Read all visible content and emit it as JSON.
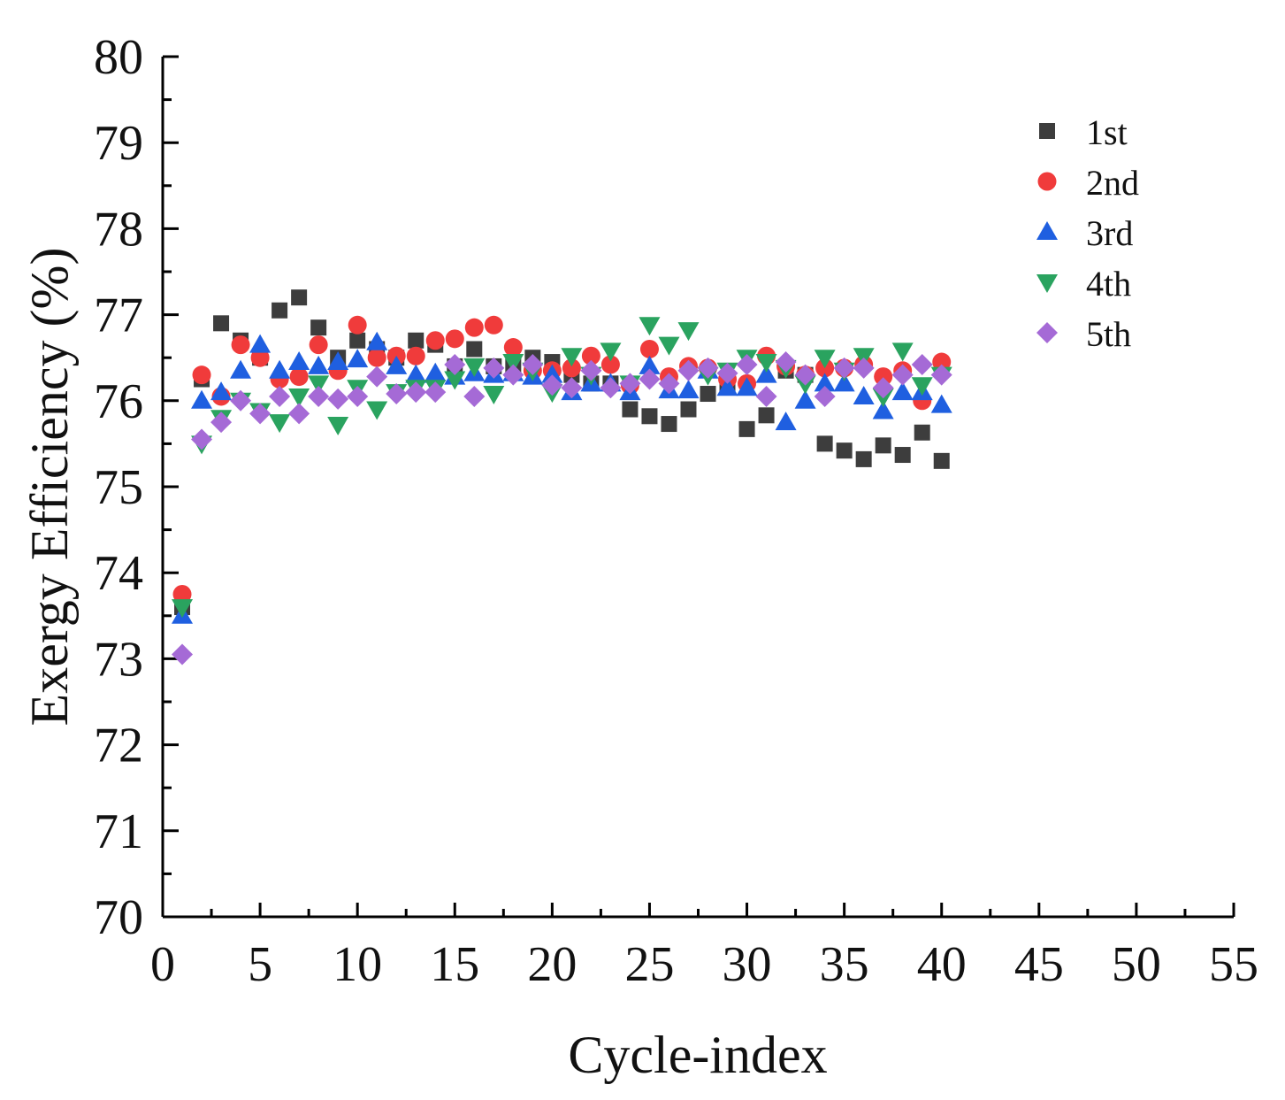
{
  "chart_data": {
    "type": "scatter",
    "title": "",
    "xlabel": "Cycle-index",
    "ylabel": "Exergy Efficiency (%)",
    "xlim": [
      0,
      55
    ],
    "ylim": [
      70,
      80
    ],
    "xticks": [
      0,
      5,
      10,
      15,
      20,
      25,
      30,
      35,
      40,
      45,
      50,
      55
    ],
    "yticks": [
      70,
      71,
      72,
      73,
      74,
      75,
      76,
      77,
      78,
      79,
      80
    ],
    "grid": false,
    "legend_position": "top-right",
    "x": [
      1,
      2,
      3,
      4,
      5,
      6,
      7,
      8,
      9,
      10,
      11,
      12,
      13,
      14,
      15,
      16,
      17,
      18,
      19,
      20,
      21,
      22,
      23,
      24,
      25,
      26,
      27,
      28,
      29,
      30,
      31,
      32,
      33,
      34,
      35,
      36,
      37,
      38,
      39,
      40
    ],
    "series": [
      {
        "name": "1st",
        "marker": "square",
        "color": "#3d3d3d",
        "values": [
          73.6,
          76.25,
          76.9,
          76.7,
          76.5,
          77.05,
          77.2,
          76.85,
          76.5,
          76.7,
          76.6,
          76.5,
          76.7,
          76.65,
          76.4,
          76.6,
          76.4,
          76.4,
          76.5,
          76.45,
          76.3,
          76.2,
          76.2,
          75.9,
          75.82,
          75.73,
          75.9,
          76.08,
          76.18,
          75.67,
          75.83,
          76.35,
          76.3,
          75.5,
          75.42,
          75.32,
          75.48,
          75.37,
          75.63,
          75.3
        ]
      },
      {
        "name": "2nd",
        "marker": "circle",
        "color": "#f03b3b",
        "values": [
          73.75,
          76.3,
          76.05,
          76.65,
          76.5,
          76.25,
          76.28,
          76.65,
          76.35,
          76.88,
          76.5,
          76.52,
          76.52,
          76.7,
          76.72,
          76.85,
          76.88,
          76.62,
          76.35,
          76.35,
          76.38,
          76.52,
          76.42,
          76.18,
          76.6,
          76.28,
          76.4,
          76.38,
          76.25,
          76.2,
          76.52,
          76.4,
          76.3,
          76.38,
          76.38,
          76.42,
          76.28,
          76.35,
          76.0,
          76.45
        ]
      },
      {
        "name": "3rd",
        "marker": "triangle-up",
        "color": "#1f5fe0",
        "values": [
          73.5,
          76.0,
          76.1,
          76.35,
          76.65,
          76.35,
          76.45,
          76.4,
          76.45,
          76.48,
          76.68,
          76.4,
          76.3,
          76.32,
          76.28,
          76.32,
          76.3,
          76.32,
          76.28,
          76.3,
          76.1,
          76.2,
          76.2,
          76.1,
          76.4,
          76.12,
          76.12,
          76.35,
          76.15,
          76.15,
          76.3,
          75.75,
          76.0,
          76.2,
          76.2,
          76.05,
          75.88,
          76.1,
          76.1,
          75.95
        ]
      },
      {
        "name": "4th",
        "marker": "triangle-down",
        "color": "#2aa35f",
        "values": [
          73.6,
          75.5,
          75.8,
          76.0,
          75.88,
          75.75,
          76.05,
          76.2,
          75.72,
          76.15,
          75.9,
          76.1,
          76.15,
          76.15,
          76.25,
          76.4,
          76.08,
          76.45,
          76.35,
          76.1,
          76.52,
          76.3,
          76.58,
          76.2,
          76.88,
          76.65,
          76.82,
          76.3,
          76.35,
          76.5,
          76.45,
          76.38,
          76.2,
          76.5,
          76.35,
          76.52,
          76.05,
          76.58,
          76.18,
          76.3
        ]
      },
      {
        "name": "5th",
        "marker": "diamond",
        "color": "#a56ad6",
        "values": [
          73.05,
          75.55,
          75.75,
          76.0,
          75.85,
          76.05,
          75.85,
          76.05,
          76.02,
          76.05,
          76.28,
          76.08,
          76.1,
          76.1,
          76.42,
          76.05,
          76.38,
          76.3,
          76.42,
          76.18,
          76.15,
          76.35,
          76.15,
          76.2,
          76.25,
          76.2,
          76.35,
          76.38,
          76.32,
          76.42,
          76.05,
          76.45,
          76.3,
          76.05,
          76.38,
          76.38,
          76.15,
          76.3,
          76.42,
          76.3
        ]
      }
    ]
  }
}
